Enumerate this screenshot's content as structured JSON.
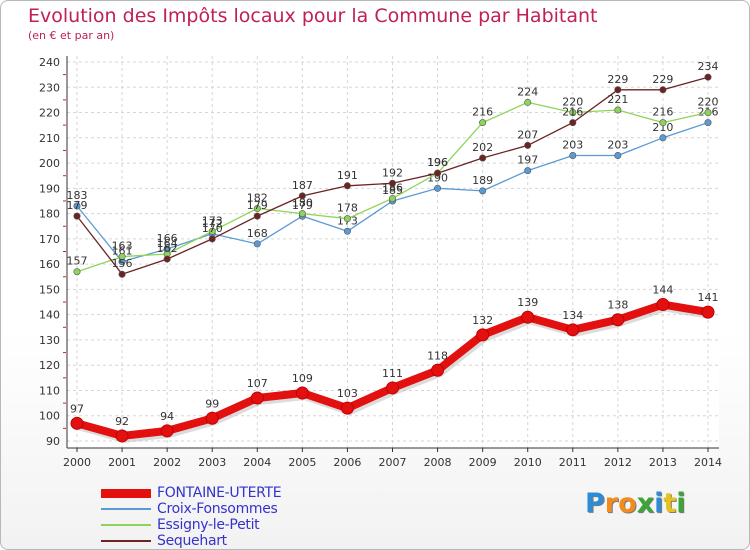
{
  "title": "Evolution des Impôts locaux pour la Commune par Habitant",
  "subtitle": "(en € et par an)",
  "logo": {
    "letters": [
      {
        "ch": "P",
        "color": "#2e8bd6"
      },
      {
        "ch": "r",
        "color": "#f28c1e"
      },
      {
        "ch": "o",
        "color": "#f28c1e"
      },
      {
        "ch": "x",
        "color": "#3aa635"
      },
      {
        "ch": "i",
        "color": "#2e8bd6"
      },
      {
        "ch": "t",
        "color": "#e8c21a"
      },
      {
        "ch": "i",
        "color": "#3aa635"
      }
    ]
  },
  "chart_data": {
    "type": "line",
    "x": [
      2000,
      2001,
      2002,
      2003,
      2004,
      2005,
      2006,
      2007,
      2008,
      2009,
      2010,
      2011,
      2012,
      2013,
      2014
    ],
    "ylim": [
      90,
      240
    ],
    "yticks": [
      90,
      100,
      110,
      120,
      130,
      140,
      150,
      160,
      170,
      180,
      190,
      200,
      210,
      220,
      230,
      240
    ],
    "grid": true,
    "legend_position": "bottom-left",
    "series": [
      {
        "name": "FONTAINE-UTERTE",
        "color": "#e31010",
        "emphasis": true,
        "values": [
          97,
          92,
          94,
          99,
          107,
          109,
          103,
          111,
          118,
          132,
          139,
          134,
          138,
          144,
          141
        ],
        "labels": [
          "97",
          "92",
          "94",
          "99",
          "107",
          "109",
          "103",
          "111",
          "118",
          "132",
          "139",
          "134",
          "138",
          "144",
          "141"
        ]
      },
      {
        "name": "Croix-Fonsommes",
        "color": "#5b9bd5",
        "values": [
          183,
          161,
          166,
          172,
          168,
          179,
          173,
          185,
          190,
          189,
          197,
          203,
          203,
          210,
          216
        ],
        "labels": [
          "183",
          "161",
          "166",
          "172",
          "168",
          "179",
          "173",
          "185",
          "190",
          "189",
          "197",
          "203",
          "203",
          "210",
          "216"
        ]
      },
      {
        "name": "Essigny-le-Petit",
        "color": "#8fd45a",
        "values": [
          157,
          163,
          164,
          173,
          182,
          180,
          178,
          186,
          196,
          216,
          224,
          220,
          221,
          216,
          220
        ],
        "labels": [
          "157",
          "163",
          "164",
          "173",
          "182",
          "180",
          "178",
          "186",
          "196",
          "216",
          "224",
          "220",
          "221",
          "216",
          "220"
        ]
      },
      {
        "name": "Sequehart",
        "color": "#6b2323",
        "values": [
          179,
          156,
          162,
          170,
          179,
          187,
          191,
          192,
          196,
          202,
          207,
          216,
          229,
          229,
          234
        ],
        "labels": [
          "179",
          "156",
          "162",
          "170",
          "179",
          "187",
          "191",
          "192",
          "196",
          "202",
          "207",
          "216",
          "229",
          "229",
          "234"
        ]
      }
    ]
  }
}
